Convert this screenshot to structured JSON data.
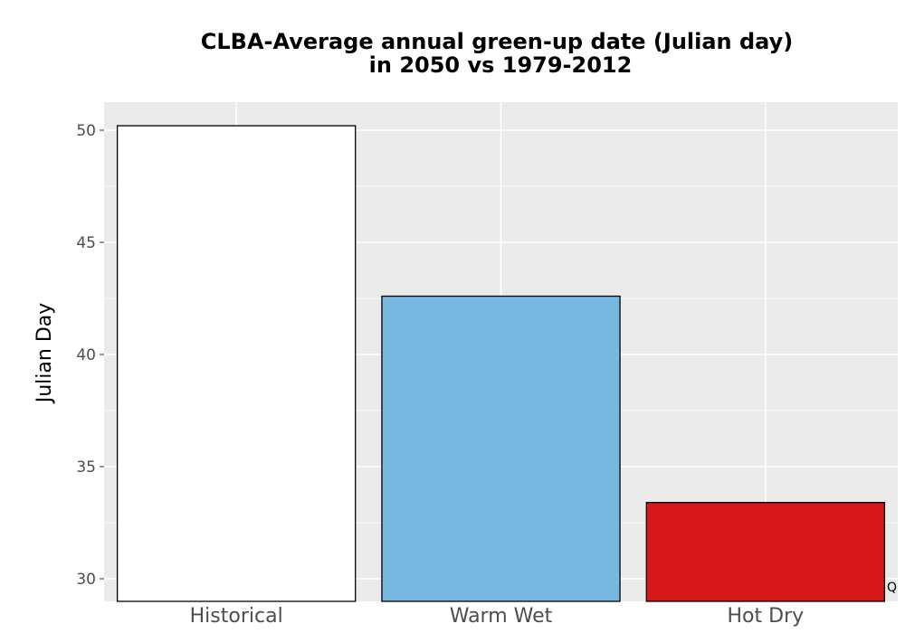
{
  "chart_data": {
    "type": "bar",
    "title": "CLBA-Average annual green-up date (Julian day)",
    "subtitle": "in 2050 vs 1979-2012",
    "xlabel": "",
    "ylabel": "Julian Day",
    "categories": [
      "Historical",
      "Warm Wet",
      "Hot Dry"
    ],
    "values": [
      50.2,
      42.6,
      33.4
    ],
    "colors": [
      "#ffffff",
      "#78b7e0",
      "#d7191c"
    ],
    "edge_color": "#000000",
    "panel_background": "#ebebeb",
    "grid": true,
    "ylim": [
      29,
      51.2
    ],
    "yticks": [
      30,
      35,
      40,
      45,
      50
    ],
    "legend": "none",
    "corner_mark": "Q"
  }
}
